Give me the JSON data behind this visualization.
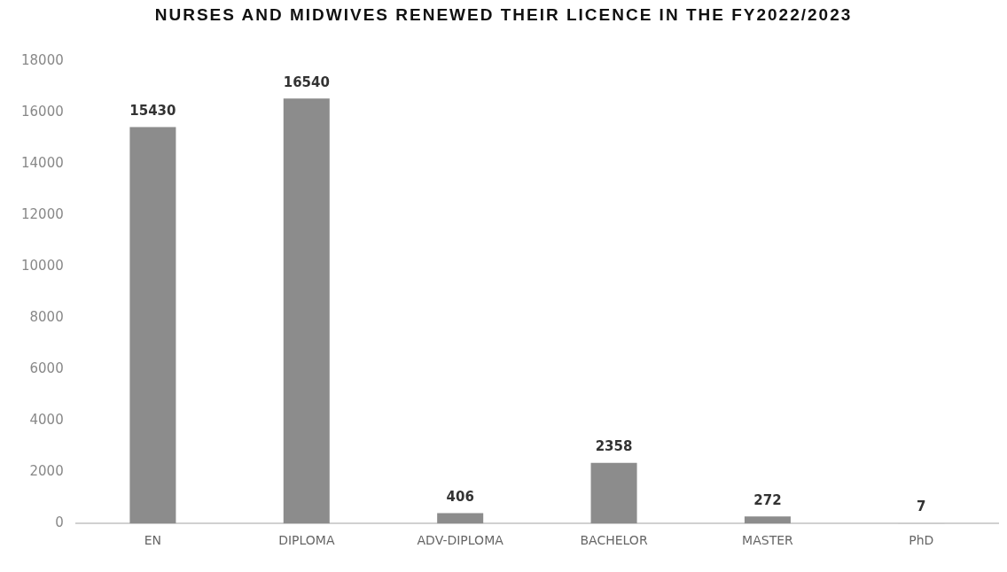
{
  "chart_data": {
    "type": "bar",
    "title": "NURSES AND MIDWIVES RENEWED THEIR LICENCE IN THE FY2022/2023",
    "categories": [
      "EN",
      "DIPLOMA",
      "ADV-DIPLOMA",
      "BACHELOR",
      "MASTER",
      "PhD"
    ],
    "values": [
      15430,
      16540,
      406,
      2358,
      272,
      7
    ],
    "color": "#8c8c8c",
    "ylim": [
      0,
      18000
    ],
    "yticks": [
      0,
      2000,
      4000,
      6000,
      8000,
      10000,
      12000,
      14000,
      16000,
      18000
    ],
    "grid": false,
    "legend": false,
    "data_labels": true
  }
}
